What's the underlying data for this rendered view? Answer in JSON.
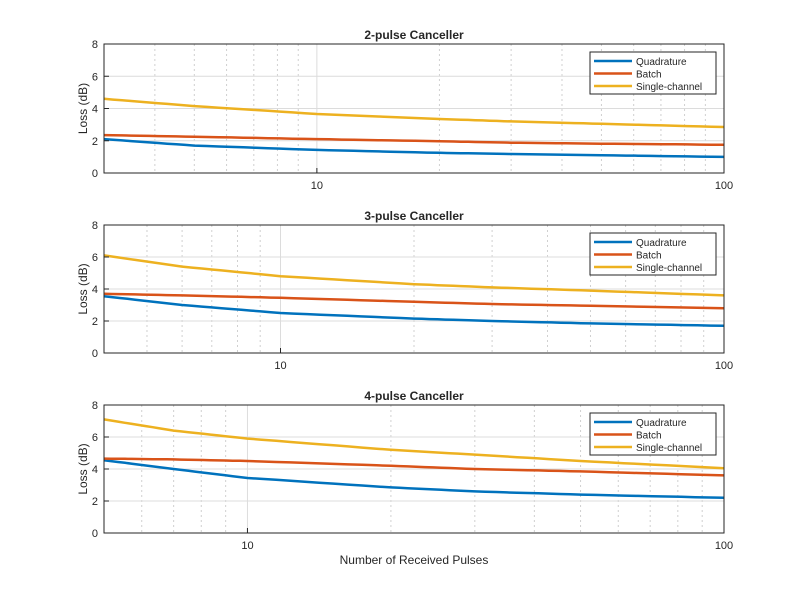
{
  "colors": {
    "Quadrature": "#0072BD",
    "Batch": "#D95319",
    "Single-channel": "#EDB120"
  },
  "xlabel": "Number of Received Pulses",
  "chart_data": [
    {
      "type": "line",
      "title": "2-pulse Canceller",
      "xlabel": "",
      "ylabel": "Loss (dB)",
      "xscale": "log",
      "xlim": [
        3,
        100
      ],
      "ylim": [
        0,
        8
      ],
      "xticks": [
        10,
        100
      ],
      "xtick_labels": [
        "10",
        "100"
      ],
      "yticks": [
        0,
        2,
        4,
        6,
        8
      ],
      "ytick_labels": [
        "0",
        "2",
        "4",
        "6",
        "8"
      ],
      "grid": true,
      "legend": "top-right",
      "x": [
        3,
        5,
        10,
        20,
        30,
        50,
        100
      ],
      "series": [
        {
          "name": "Quadrature",
          "values": [
            2.1,
            1.7,
            1.43,
            1.25,
            1.18,
            1.1,
            1.0
          ]
        },
        {
          "name": "Batch",
          "values": [
            2.35,
            2.25,
            2.1,
            1.97,
            1.88,
            1.82,
            1.75
          ]
        },
        {
          "name": "Single-channel",
          "values": [
            4.6,
            4.15,
            3.66,
            3.35,
            3.2,
            3.05,
            2.85
          ]
        }
      ]
    },
    {
      "type": "line",
      "title": "3-pulse Canceller",
      "xlabel": "",
      "ylabel": "Loss (dB)",
      "xscale": "log",
      "xlim": [
        4,
        100
      ],
      "ylim": [
        0,
        8
      ],
      "xticks": [
        10,
        100
      ],
      "xtick_labels": [
        "10",
        "100"
      ],
      "yticks": [
        0,
        2,
        4,
        6,
        8
      ],
      "ytick_labels": [
        "0",
        "2",
        "4",
        "6",
        "8"
      ],
      "grid": true,
      "legend": "top-right",
      "x": [
        4,
        6,
        10,
        20,
        30,
        50,
        100
      ],
      "series": [
        {
          "name": "Quadrature",
          "values": [
            3.55,
            3.0,
            2.5,
            2.15,
            2.0,
            1.85,
            1.7
          ]
        },
        {
          "name": "Batch",
          "values": [
            3.7,
            3.6,
            3.45,
            3.2,
            3.06,
            2.95,
            2.8
          ]
        },
        {
          "name": "Single-channel",
          "values": [
            6.1,
            5.4,
            4.8,
            4.3,
            4.1,
            3.9,
            3.6
          ]
        }
      ]
    },
    {
      "type": "line",
      "title": "4-pulse Canceller",
      "xlabel": "Number of Received Pulses",
      "ylabel": "Loss (dB)",
      "xscale": "log",
      "xlim": [
        5,
        100
      ],
      "ylim": [
        0,
        8
      ],
      "xticks": [
        10,
        100
      ],
      "xtick_labels": [
        "10",
        "100"
      ],
      "yticks": [
        0,
        2,
        4,
        6,
        8
      ],
      "ytick_labels": [
        "0",
        "2",
        "4",
        "6",
        "8"
      ],
      "grid": true,
      "legend": "top-right",
      "x": [
        5,
        7,
        10,
        20,
        30,
        50,
        100
      ],
      "series": [
        {
          "name": "Quadrature",
          "values": [
            4.55,
            4.0,
            3.44,
            2.85,
            2.6,
            2.4,
            2.2
          ]
        },
        {
          "name": "Batch",
          "values": [
            4.65,
            4.6,
            4.5,
            4.2,
            4.0,
            3.85,
            3.6
          ]
        },
        {
          "name": "Single-channel",
          "values": [
            7.1,
            6.4,
            5.9,
            5.2,
            4.9,
            4.5,
            4.05
          ]
        }
      ]
    }
  ]
}
